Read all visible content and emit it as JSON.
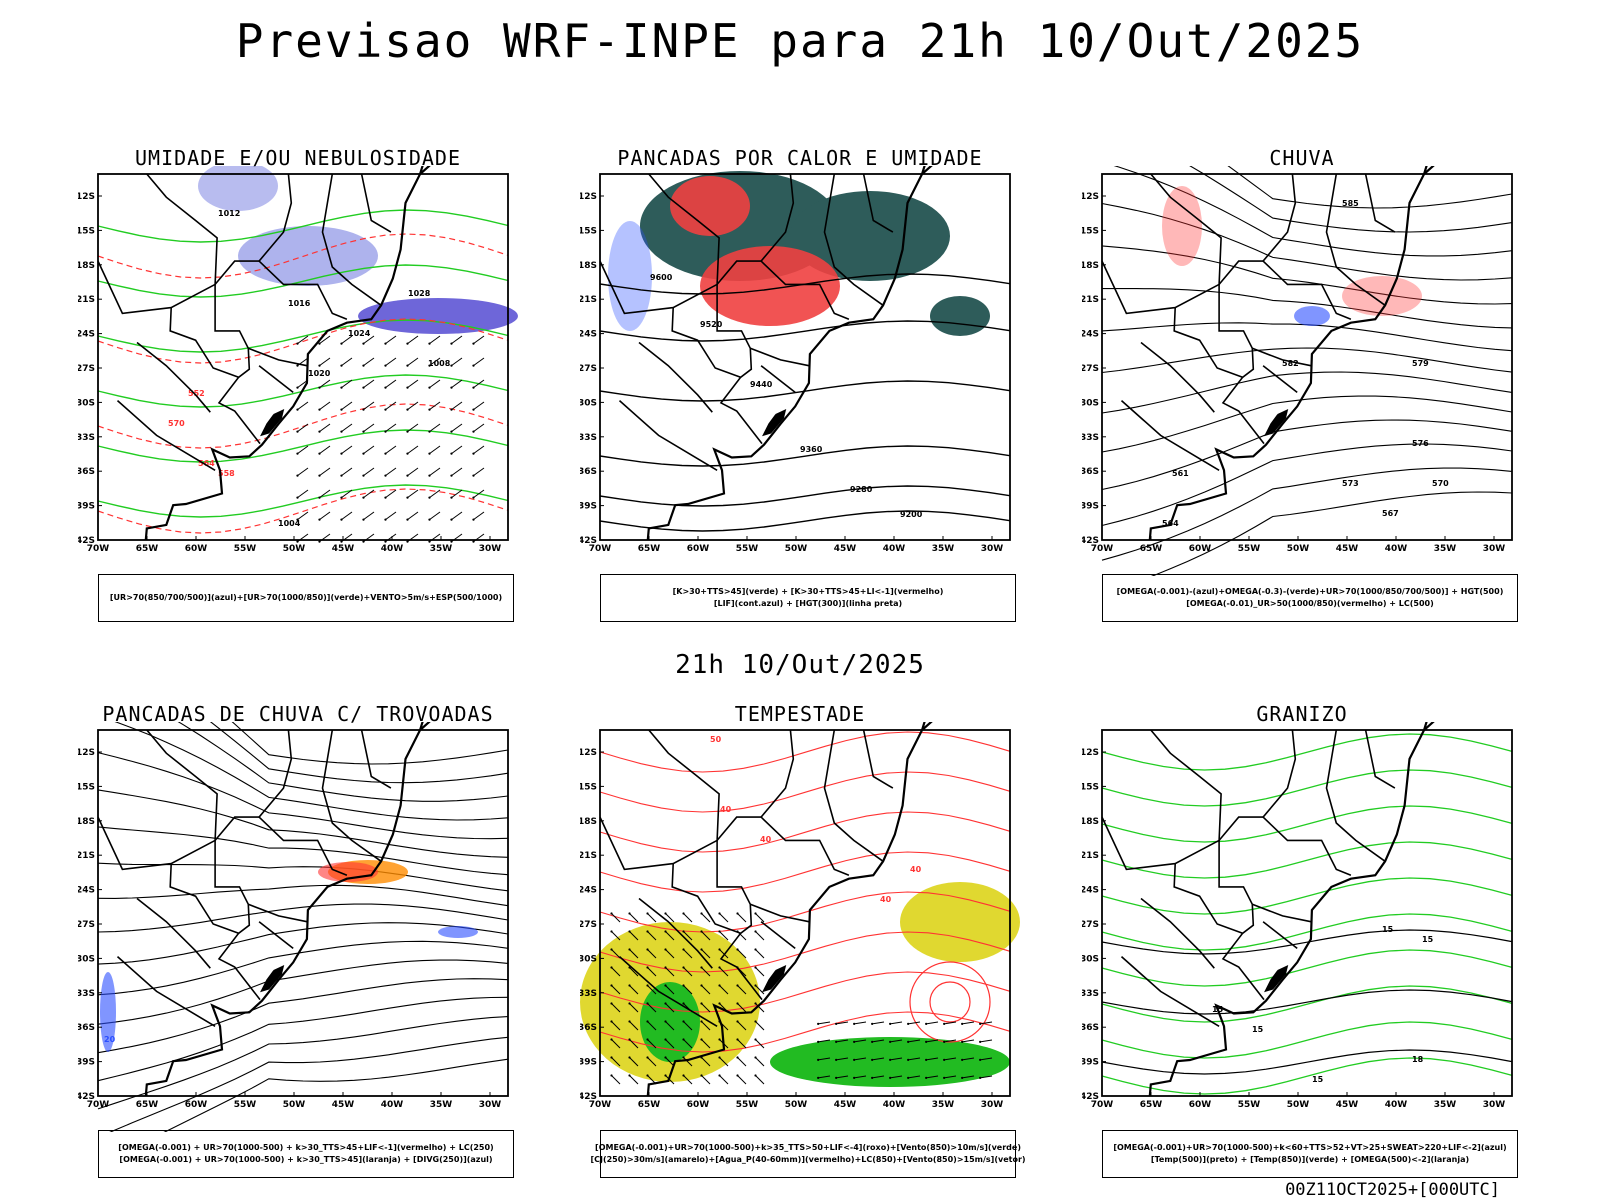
{
  "header": {
    "title": "Previsao WRF-INPE  para 21h 10/Out/2025",
    "subtitle": "21h 10/Out/2025",
    "run_stamp": "00Z11OCT2025+[000UTC]"
  },
  "axes": {
    "lat_labels": [
      "12S",
      "15S",
      "18S",
      "21S",
      "24S",
      "27S",
      "30S",
      "33S",
      "36S",
      "39S",
      "42S"
    ],
    "lon_labels": [
      "70W",
      "65W",
      "60W",
      "55W",
      "50W",
      "45W",
      "40W",
      "35W",
      "30W"
    ]
  },
  "colors": {
    "humid_blue": "#9aa0e8",
    "dark_blue": "#4a40d0",
    "green_line": "#22cc22",
    "red_line": "#ff3333",
    "teal_fill": "#2e5c5a",
    "red_fill": "#f04040",
    "yellow_fill": "#e0d830",
    "green_fill": "#22bb22",
    "blue_line": "#2b4fff",
    "orange_fill": "#ff8c00"
  },
  "panels": [
    {
      "title": "UMIDADE E/OU NEBULOSIDADE",
      "legend": [
        "[UR>70(850/700/500)](azul)+[UR>70(1000/850)](verde)+VENTO>5m/s+ESP(500/1000)"
      ],
      "contour_labels": [
        "1012",
        "1016",
        "1020",
        "1024",
        "1028",
        "1008",
        "1004",
        "570",
        "564",
        "558",
        "552"
      ]
    },
    {
      "title": "PANCADAS POR CALOR E UMIDADE",
      "legend": [
        "[K>30+TTS>45](verde) + [K>30+TTS>45+LI<-1](vermelho)",
        "[LIF](cont.azul) + [HGT(300)](linha preta)"
      ],
      "contour_labels": [
        "9600",
        "9520",
        "9440",
        "9360",
        "9280",
        "9200"
      ]
    },
    {
      "title": "CHUVA",
      "legend": [
        "[OMEGA(-0.001)-(azul)+OMEGA(-0.3)-(verde)+UR>70(1000/850/700/500)] + HGT(500)",
        "[OMEGA(-0.01)_UR>50(1000/850)(vermelho) + LC(500)"
      ],
      "contour_labels": [
        "585",
        "582",
        "579",
        "576",
        "573",
        "570",
        "567",
        "564",
        "561"
      ]
    },
    {
      "title": "PANCADAS DE CHUVA C/ TROVOADAS",
      "legend": [
        "[OMEGA(-0.001) + UR>70(1000-500) + k>30_TTS>45+LIF<-1](vermelho) + LC(250)",
        "[OMEGA(-0.001) + UR>70(1000-500) + k>30_TTS>45](laranja) + [DIVG(250)](azul)"
      ],
      "contour_labels": [
        "20"
      ]
    },
    {
      "title": "TEMPESTADE",
      "legend": [
        "[OMEGA(-0.001)+UR>70(1000-500)+k>35_TTS>50+LIF<-4](roxo)+[Vento(850)>10m/s](verde)",
        "[CJ(250)>30m/s](amarelo)+[Agua_P(40-60mm)](vermelho)+LC(850)+[Vento(850)>15m/s](vetor)"
      ],
      "contour_labels": [
        "50",
        "40",
        "40",
        "40",
        "40"
      ]
    },
    {
      "title": "GRANIZO",
      "legend": [
        "[OMEGA(-0.001)+UR>70(1000-500)+k<60+TTS>52+VT>25+SWEAT>220+LIF<-2](azul)",
        "[Temp(500)](preto) + [Temp(850)](verde) + [OMEGA(500)<-2](laranja)"
      ],
      "contour_labels": [
        "15",
        "15",
        "15",
        "15",
        "15",
        "18"
      ]
    }
  ]
}
